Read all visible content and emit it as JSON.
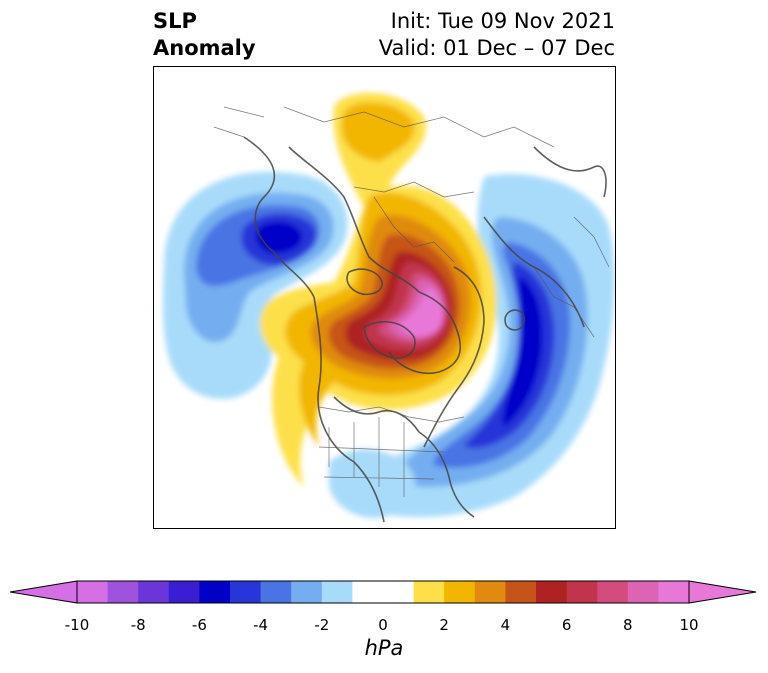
{
  "title": {
    "left_line1": "SLP",
    "left_line2": "Anomaly",
    "right_line1": "Init: Tue 09 Nov 2021",
    "right_line2": "Valid: 01 Dec – 07 Dec"
  },
  "colorbar": {
    "unit": "hPa",
    "ticks": [
      "-10",
      "-8",
      "-6",
      "-4",
      "-2",
      "0",
      "2",
      "4",
      "6",
      "8",
      "10"
    ],
    "bins": [
      {
        "min": -10,
        "max": -9,
        "color": "#d570e4"
      },
      {
        "min": -9,
        "max": -8,
        "color": "#9f52de"
      },
      {
        "min": -8,
        "max": -7,
        "color": "#6a36d8"
      },
      {
        "min": -7,
        "max": -6,
        "color": "#3a1ed2"
      },
      {
        "min": -6,
        "max": -5,
        "color": "#0000c8"
      },
      {
        "min": -5,
        "max": -4,
        "color": "#2636d8"
      },
      {
        "min": -4,
        "max": -3,
        "color": "#4a74e4"
      },
      {
        "min": -3,
        "max": -2,
        "color": "#74aef0"
      },
      {
        "min": -2,
        "max": -1,
        "color": "#a8dbfa"
      },
      {
        "min": -1,
        "max": 1,
        "color": "#ffffff"
      },
      {
        "min": 1,
        "max": 2,
        "color": "#fde048"
      },
      {
        "min": 2,
        "max": 3,
        "color": "#f2b600"
      },
      {
        "min": 3,
        "max": 4,
        "color": "#e08a10"
      },
      {
        "min": 4,
        "max": 5,
        "color": "#c65418"
      },
      {
        "min": 5,
        "max": 6,
        "color": "#ae2222"
      },
      {
        "min": 6,
        "max": 7,
        "color": "#c0344c"
      },
      {
        "min": 7,
        "max": 8,
        "color": "#d24c7e"
      },
      {
        "min": 8,
        "max": 9,
        "color": "#dc64b4"
      },
      {
        "min": 9,
        "max": 10,
        "color": "#e878d8"
      }
    ],
    "under_color": "#d570e4",
    "over_color": "#e878d8"
  }
}
